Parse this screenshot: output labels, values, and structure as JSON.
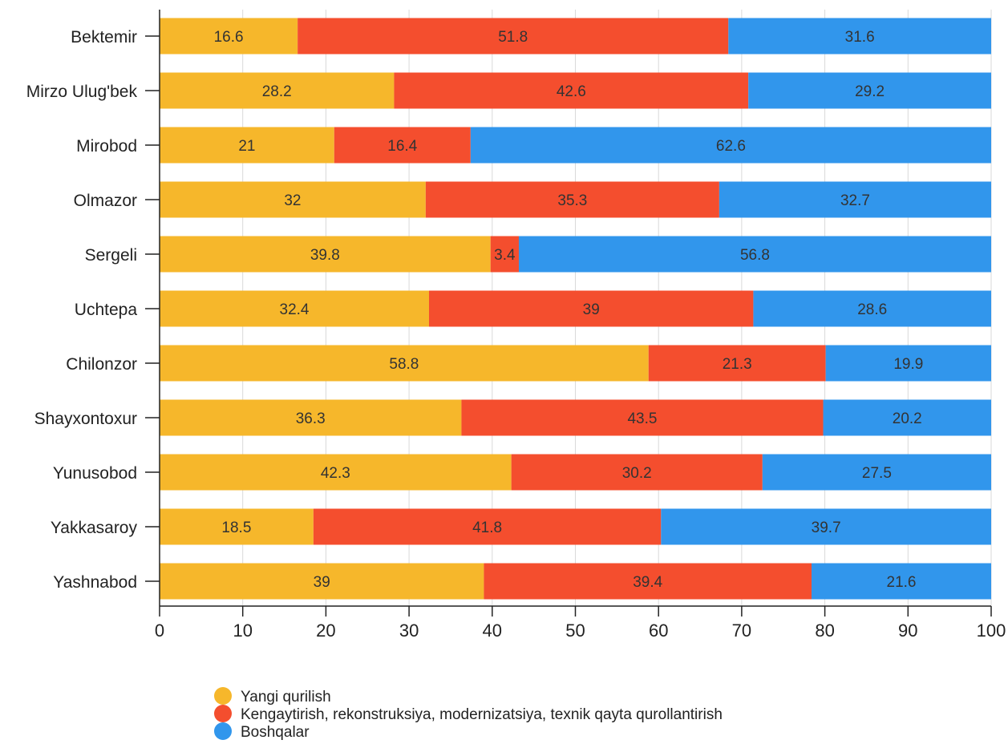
{
  "chart_data": {
    "type": "bar",
    "orientation": "horizontal",
    "stacked": true,
    "categories": [
      "Bektemir",
      "Mirzo Ulug'bek",
      "Mirobod",
      "Olmazor",
      "Sergeli",
      "Uchtepa",
      "Chilonzor",
      "Shayxontoxur",
      "Yunusobod",
      "Yakkasaroy",
      "Yashnabod"
    ],
    "series": [
      {
        "name": "Yangi qurilish",
        "color": "#f6b72b",
        "values": [
          16.6,
          28.2,
          21,
          32,
          39.8,
          32.4,
          58.8,
          36.3,
          42.3,
          18.5,
          39
        ]
      },
      {
        "name": "Kengaytirish, rekonstruksiya, modernizatsiya, texnik qayta qurollantirish",
        "color": "#f44e2e",
        "values": [
          51.8,
          42.6,
          16.4,
          35.3,
          3.4,
          39,
          21.3,
          43.5,
          30.2,
          41.8,
          39.4
        ]
      },
      {
        "name": "Boshqalar",
        "color": "#3196ec",
        "values": [
          31.6,
          29.2,
          62.6,
          32.7,
          56.8,
          28.6,
          19.9,
          20.2,
          27.5,
          39.7,
          21.6
        ]
      }
    ],
    "xlim": [
      0,
      100
    ],
    "xticks": [
      0,
      10,
      20,
      30,
      40,
      50,
      60,
      70,
      80,
      90,
      100
    ],
    "grid": true,
    "legend_position": "bottom",
    "title": "",
    "xlabel": "",
    "ylabel": ""
  }
}
